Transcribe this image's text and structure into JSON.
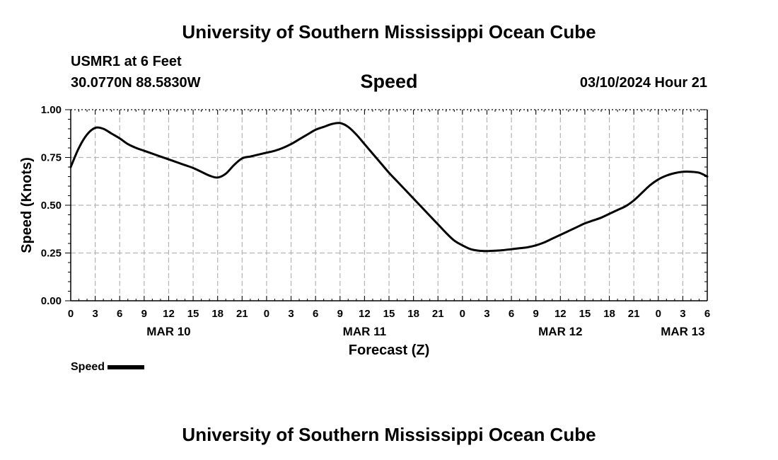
{
  "header": {
    "title": "University of Southern Mississippi Ocean Cube",
    "station": "USMR1 at 6 Feet",
    "coords": "30.0770N  88.5830W",
    "parameter": "Speed",
    "timestamp": "03/10/2024 Hour 21"
  },
  "footer": {
    "title": "University of Southern Mississippi Ocean Cube"
  },
  "legend": {
    "label": "Speed"
  },
  "chart_data": {
    "type": "line",
    "title": "Speed",
    "xlabel": "Forecast (Z)",
    "ylabel": "Speed (Knots)",
    "xlim": [
      0,
      78
    ],
    "ylim": [
      0,
      1.0
    ],
    "grid": true,
    "y_ticks": [
      0,
      0.25,
      0.5,
      0.75,
      1.0
    ],
    "y_tick_labels": [
      "0.00",
      "0.25",
      "0.50",
      "0.75",
      "1.00"
    ],
    "x_ticks": [
      0,
      3,
      6,
      9,
      12,
      15,
      18,
      21,
      24,
      27,
      30,
      33,
      36,
      39,
      42,
      45,
      48,
      51,
      54,
      57,
      60,
      63,
      66,
      69,
      72,
      75,
      78
    ],
    "x_tick_labels": [
      "0",
      "3",
      "6",
      "9",
      "12",
      "15",
      "18",
      "21",
      "0",
      "3",
      "6",
      "9",
      "12",
      "15",
      "18",
      "21",
      "0",
      "3",
      "6",
      "9",
      "12",
      "15",
      "18",
      "21",
      "0",
      "3",
      "6"
    ],
    "date_labels": [
      {
        "x": 12,
        "label": "MAR 10"
      },
      {
        "x": 36,
        "label": "MAR 11"
      },
      {
        "x": 60,
        "label": "MAR 12"
      },
      {
        "x": 75,
        "label": "MAR 13"
      }
    ],
    "series": [
      {
        "name": "Speed",
        "color": "#000000",
        "x": [
          0,
          1,
          2,
          3,
          4,
          5,
          6,
          7,
          8,
          9,
          10,
          11,
          12,
          13,
          14,
          15,
          16,
          17,
          18,
          19,
          20,
          21,
          22,
          23,
          24,
          25,
          26,
          27,
          28,
          29,
          30,
          31,
          32,
          33,
          34,
          35,
          36,
          37,
          38,
          39,
          40,
          41,
          42,
          43,
          44,
          45,
          46,
          47,
          48,
          49,
          50,
          51,
          52,
          53,
          54,
          55,
          56,
          57,
          58,
          59,
          60,
          61,
          62,
          63,
          64,
          65,
          66,
          67,
          68,
          69,
          70,
          71,
          72,
          73,
          74,
          75,
          76,
          77,
          78
        ],
        "values": [
          0.7,
          0.8,
          0.87,
          0.905,
          0.9,
          0.875,
          0.85,
          0.82,
          0.8,
          0.785,
          0.77,
          0.755,
          0.74,
          0.725,
          0.71,
          0.695,
          0.675,
          0.655,
          0.645,
          0.665,
          0.71,
          0.745,
          0.755,
          0.765,
          0.775,
          0.785,
          0.8,
          0.82,
          0.845,
          0.87,
          0.895,
          0.91,
          0.925,
          0.93,
          0.91,
          0.87,
          0.82,
          0.77,
          0.72,
          0.67,
          0.625,
          0.58,
          0.535,
          0.49,
          0.445,
          0.4,
          0.355,
          0.315,
          0.29,
          0.27,
          0.262,
          0.26,
          0.262,
          0.265,
          0.27,
          0.275,
          0.28,
          0.29,
          0.305,
          0.325,
          0.345,
          0.365,
          0.385,
          0.405,
          0.42,
          0.435,
          0.455,
          0.475,
          0.495,
          0.525,
          0.565,
          0.605,
          0.635,
          0.655,
          0.668,
          0.675,
          0.675,
          0.67,
          0.65
        ]
      }
    ]
  }
}
